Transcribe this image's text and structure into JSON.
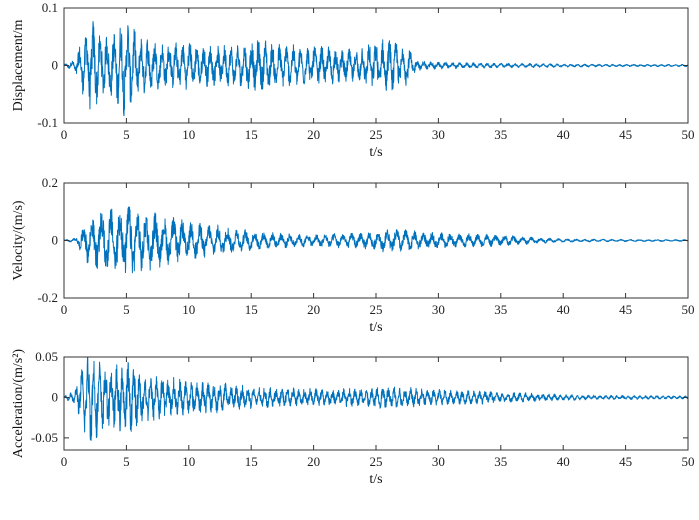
{
  "chart_data": [
    {
      "type": "line",
      "xlabel": "t/s",
      "ylabel": "Displacement/m",
      "xlim": [
        0,
        50
      ],
      "ylim": [
        -0.1,
        0.1
      ],
      "xticks": [
        "0",
        "5",
        "10",
        "15",
        "20",
        "25",
        "30",
        "35",
        "40",
        "45",
        "50"
      ],
      "yticks": [
        "-0.1",
        "0",
        "0.1"
      ],
      "grid": false,
      "color": "#0072BD",
      "series": [
        {
          "envelope": {
            "t": [
              0,
              0.8,
              1.5,
              2.2,
              3.0,
              4.0,
              4.8,
              5.2,
              6.0,
              8.0,
              10.0,
              12.0,
              14.0,
              15.5,
              17.0,
              19.0,
              21.0,
              23.0,
              25.0,
              26.0,
              27.5,
              28.3,
              29.0,
              32.0,
              36.0,
              40.0,
              45.0,
              50.0
            ],
            "amplitude": [
              0.002,
              0.01,
              0.05,
              0.085,
              0.055,
              0.06,
              0.09,
              0.08,
              0.055,
              0.04,
              0.042,
              0.035,
              0.038,
              0.05,
              0.04,
              0.035,
              0.035,
              0.03,
              0.045,
              0.05,
              0.035,
              0.01,
              0.008,
              0.005,
              0.004,
              0.003,
              0.002,
              0.002
            ]
          }
        }
      ]
    },
    {
      "type": "line",
      "xlabel": "t/s",
      "ylabel": "Velocity/(m/s)",
      "xlim": [
        0,
        50
      ],
      "ylim": [
        -0.2,
        0.2
      ],
      "xticks": [
        "0",
        "5",
        "10",
        "15",
        "20",
        "25",
        "30",
        "35",
        "40",
        "45",
        "50"
      ],
      "yticks": [
        "-0.2",
        "0",
        "0.2"
      ],
      "grid": false,
      "color": "#0072BD",
      "series": [
        {
          "envelope": {
            "t": [
              0,
              1.0,
              1.8,
              2.5,
              4.0,
              5.0,
              6.0,
              8.0,
              10.0,
              13.0,
              16.0,
              20.0,
              24.0,
              26.5,
              28.0,
              30.0,
              33.0,
              36.0,
              38.0,
              40.0,
              45.0,
              50.0
            ],
            "amplitude": [
              0.002,
              0.01,
              0.08,
              0.1,
              0.12,
              0.14,
              0.12,
              0.09,
              0.07,
              0.05,
              0.03,
              0.022,
              0.03,
              0.045,
              0.035,
              0.028,
              0.024,
              0.018,
              0.01,
              0.006,
              0.004,
              0.003
            ]
          }
        }
      ]
    },
    {
      "type": "line",
      "xlabel": "t/s",
      "ylabel": "Acceleration/(m/s²)",
      "xlim": [
        0,
        50
      ],
      "ylim": [
        -0.065,
        0.05
      ],
      "xticks": [
        "0",
        "5",
        "10",
        "15",
        "20",
        "25",
        "30",
        "35",
        "40",
        "45",
        "50"
      ],
      "yticks": [
        "-0.05",
        "0",
        "0.05"
      ],
      "grid": false,
      "color": "#0072BD",
      "series": [
        {
          "envelope": {
            "t": [
              0,
              0.8,
              1.5,
              2.0,
              3.0,
              4.0,
              5.0,
              6.0,
              8.0,
              10.0,
              12.0,
              15.0,
              18.0,
              22.0,
              25.0,
              26.5,
              28.0,
              30.0,
              34.0,
              38.0,
              42.0,
              46.0,
              50.0
            ],
            "amplitude": [
              0.002,
              0.008,
              0.04,
              0.06,
              0.045,
              0.04,
              0.05,
              0.035,
              0.028,
              0.022,
              0.02,
              0.014,
              0.012,
              0.011,
              0.013,
              0.015,
              0.012,
              0.01,
              0.008,
              0.005,
              0.003,
              0.0025,
              0.002
            ]
          }
        }
      ]
    }
  ]
}
